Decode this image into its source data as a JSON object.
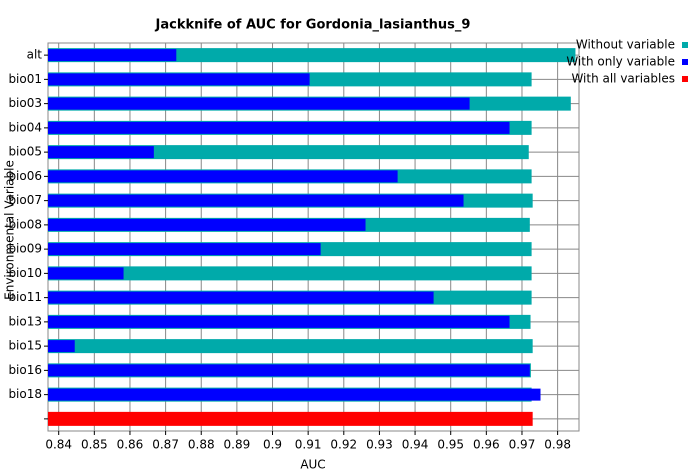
{
  "chart_data": {
    "type": "bar",
    "orientation": "horizontal",
    "title": "Jackknife of AUC for Gordonia_lasianthus_9",
    "x_label": "AUC",
    "y_label": "Environmental Variable",
    "categories": [
      "alt",
      "bio01",
      "bio03",
      "bio04",
      "bio05",
      "bio06",
      "bio07",
      "bio08",
      "bio09",
      "bio10",
      "bio11",
      "bio13",
      "bio15",
      "bio16",
      "bio18",
      null
    ],
    "series": [
      {
        "name": "Without variable",
        "color": "#00aaaa",
        "values": [
          0.985,
          0.9727,
          0.9837,
          0.9727,
          0.9719,
          0.9727,
          0.973,
          0.9722,
          0.9727,
          0.9727,
          0.9727,
          0.9724,
          0.973,
          0.9725,
          0.9727,
          null
        ]
      },
      {
        "name": "With only variable",
        "color": "#0000ff",
        "values": [
          0.873,
          0.9104,
          0.9553,
          0.9665,
          0.8667,
          0.9351,
          0.9536,
          0.9261,
          0.9135,
          0.8582,
          0.9452,
          0.9665,
          0.8445,
          0.9722,
          0.9752,
          null
        ]
      },
      {
        "name": "With all variables",
        "color": "#ff0000",
        "values": [
          null,
          null,
          null,
          null,
          null,
          null,
          null,
          null,
          null,
          null,
          null,
          null,
          null,
          null,
          null,
          0.973
        ]
      }
    ],
    "xlim": [
      0.837,
      0.986
    ],
    "xticks": [
      0.84,
      0.85,
      0.86,
      0.87,
      0.88,
      0.89,
      0.9,
      0.91,
      0.92,
      0.93,
      0.94,
      0.95,
      0.96,
      0.97,
      0.98
    ],
    "grid": true,
    "legend": "right"
  }
}
